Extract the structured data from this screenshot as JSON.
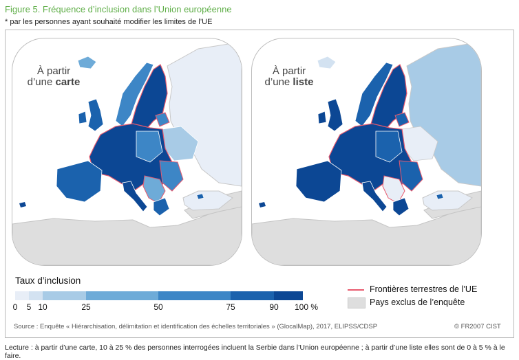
{
  "figure": {
    "title": "Figure 5. Fréquence d’inclusion dans l’Union européenne",
    "subtitle": "* par les personnes ayant souhaité modifier les limites de l’UE"
  },
  "maps": [
    {
      "label_line1": "À partir",
      "label_line2_prefix": "d’une ",
      "label_line2_bold": "carte"
    },
    {
      "label_line1": "À partir",
      "label_line2_prefix": "d’une ",
      "label_line2_bold": "liste"
    }
  ],
  "legend": {
    "title": "Taux d’inclusion",
    "ticks": [
      "0",
      "5",
      "10",
      "25",
      "50",
      "75",
      "90",
      "100 %"
    ],
    "classes": [
      {
        "range": "0 – 5",
        "color": "#e8eef7"
      },
      {
        "range": "5 – 10",
        "color": "#d3e2f1"
      },
      {
        "range": "10 – 25",
        "color": "#a8cbe6"
      },
      {
        "range": "25 – 50",
        "color": "#6eabd8"
      },
      {
        "range": "50 – 75",
        "color": "#3d86c6"
      },
      {
        "range": "75 – 90",
        "color": "#1b62ad"
      },
      {
        "range": "90 – 100",
        "color": "#0c4794"
      }
    ],
    "border_label": "Frontières terrestres de l’UE",
    "border_color": "#e85a6e",
    "excluded_label": "Pays exclus de l’enquête",
    "excluded_color": "#dedede"
  },
  "source": "Source : Enquête « Hiérarchisation, délimitation et identification des échelles territoriales » (GlocalMap), 2017, ELIPSS/CDSP",
  "copyright": "© FR2007 CIST",
  "note": "Lecture : à partir d’une carte, 10 à 25 % des personnes interrogées incluent la Serbie dans l’Union européenne ; à partir d’une liste elles sont de 0 à 5 % à le faire."
}
